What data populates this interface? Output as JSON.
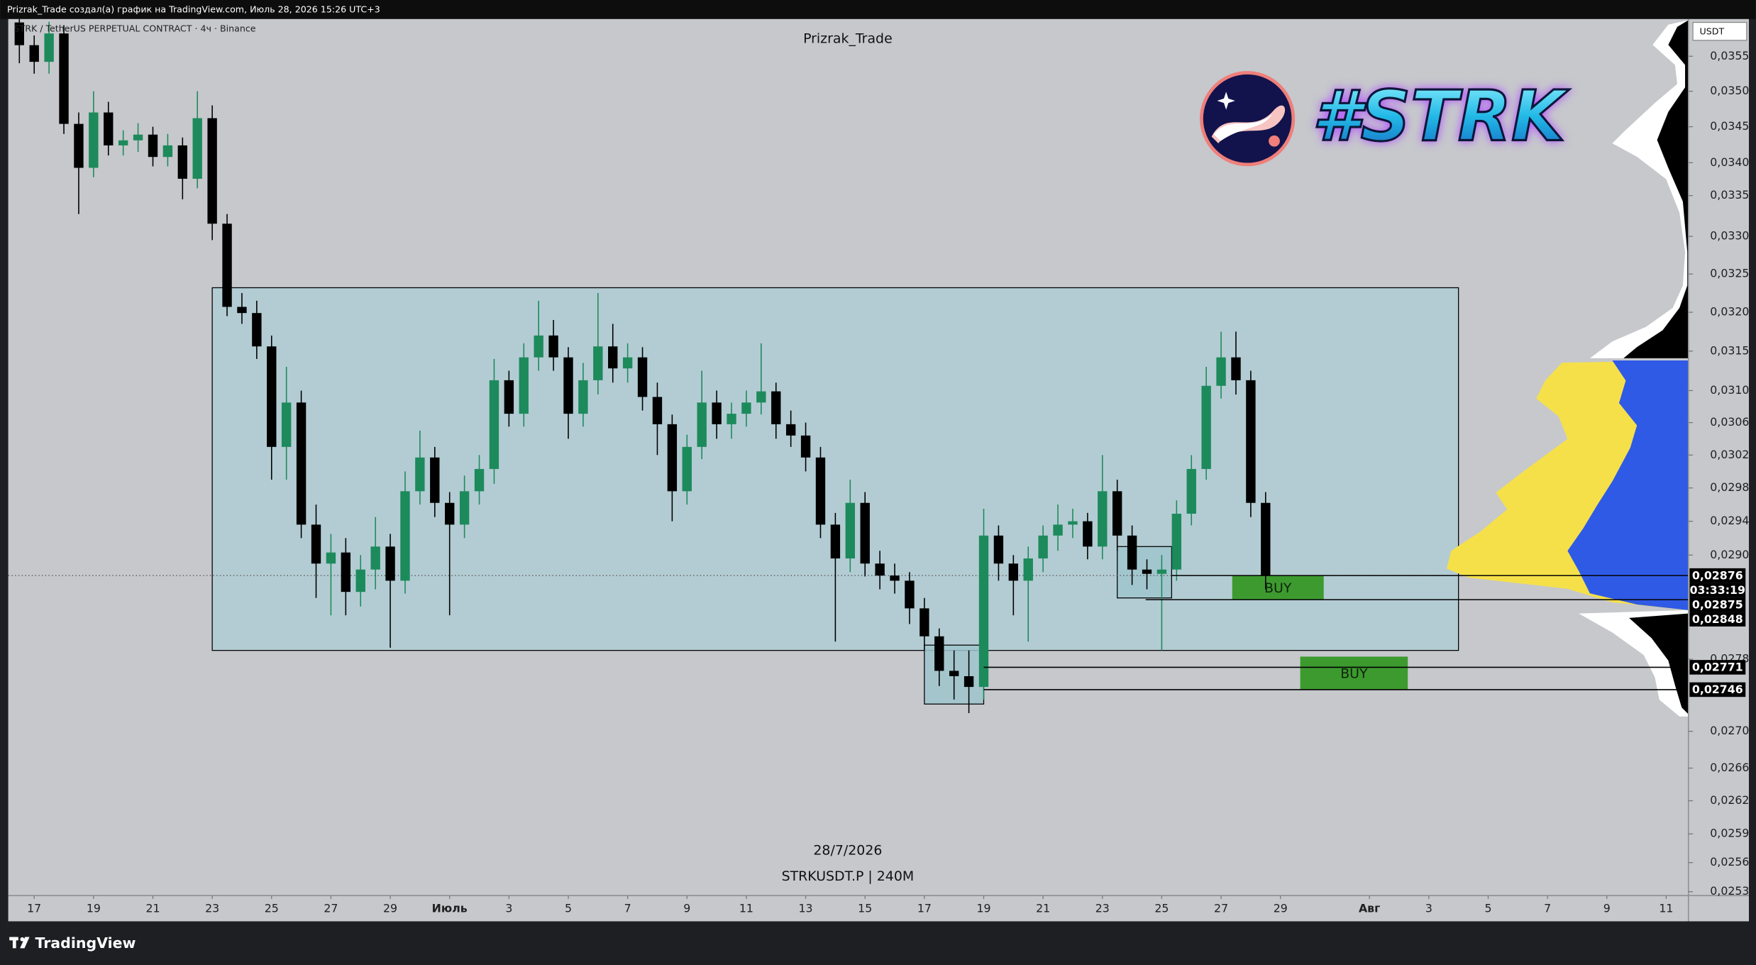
{
  "header": "Prizrak_Trade создал(а) график на TradingView.com, Июль 28, 2026 15:26 UTC+3",
  "watermark": {
    "date": "28/7/2026",
    "symbol": "STRKUSDT.P | 240M"
  },
  "logo_text": "#STRK",
  "footer_brand": "TradingView",
  "chart_data": {
    "type": "candlestick",
    "title": "Prizrak_Trade",
    "symbol": "STRK / TetherUS PERPETUAL CONTRACT · 4ч · Binance",
    "currency": "USDT",
    "log_scale": true,
    "up_color": "#1d8a5c",
    "down_color": "#000000",
    "x": [
      "2026-06-16T12:00",
      "2026-06-17T00:00",
      "2026-06-17T12:00",
      "2026-06-18T00:00",
      "2026-06-18T12:00",
      "2026-06-19T00:00",
      "2026-06-19T12:00",
      "2026-06-20T00:00",
      "2026-06-20T12:00",
      "2026-06-21T00:00",
      "2026-06-21T12:00",
      "2026-06-22T00:00",
      "2026-06-22T12:00",
      "2026-06-23T00:00",
      "2026-06-23T12:00",
      "2026-06-24T00:00",
      "2026-06-24T12:00",
      "2026-06-25T00:00",
      "2026-06-25T12:00",
      "2026-06-26T00:00",
      "2026-06-26T12:00",
      "2026-06-27T00:00",
      "2026-06-27T12:00",
      "2026-06-28T00:00",
      "2026-06-28T12:00",
      "2026-06-29T00:00",
      "2026-06-29T12:00",
      "2026-06-30T00:00",
      "2026-06-30T12:00",
      "2026-07-01T00:00",
      "2026-07-01T12:00",
      "2026-07-02T00:00",
      "2026-07-02T12:00",
      "2026-07-03T00:00",
      "2026-07-03T12:00",
      "2026-07-04T00:00",
      "2026-07-04T12:00",
      "2026-07-05T00:00",
      "2026-07-05T12:00",
      "2026-07-06T00:00",
      "2026-07-06T12:00",
      "2026-07-07T00:00",
      "2026-07-07T12:00",
      "2026-07-08T00:00",
      "2026-07-08T12:00",
      "2026-07-09T00:00",
      "2026-07-09T12:00",
      "2026-07-10T00:00",
      "2026-07-10T12:00",
      "2026-07-11T00:00",
      "2026-07-11T12:00",
      "2026-07-12T00:00",
      "2026-07-12T12:00",
      "2026-07-13T00:00",
      "2026-07-13T12:00",
      "2026-07-14T00:00",
      "2026-07-14T12:00",
      "2026-07-15T00:00",
      "2026-07-15T12:00",
      "2026-07-16T00:00",
      "2026-07-16T12:00",
      "2026-07-17T00:00",
      "2026-07-17T12:00",
      "2026-07-18T00:00",
      "2026-07-18T12:00",
      "2026-07-19T00:00",
      "2026-07-19T12:00",
      "2026-07-20T00:00",
      "2026-07-20T12:00",
      "2026-07-21T00:00",
      "2026-07-21T12:00",
      "2026-07-22T00:00",
      "2026-07-22T12:00",
      "2026-07-23T00:00",
      "2026-07-23T12:00",
      "2026-07-24T00:00",
      "2026-07-24T12:00",
      "2026-07-25T00:00",
      "2026-07-25T12:00",
      "2026-07-26T00:00",
      "2026-07-26T12:00",
      "2026-07-27T00:00",
      "2026-07-27T12:00",
      "2026-07-28T00:00",
      "2026-07-28T12:00"
    ],
    "open": [
      0.03599,
      0.03566,
      0.03542,
      0.03583,
      0.03454,
      0.03393,
      0.0347,
      0.03424,
      0.03431,
      0.03439,
      0.03408,
      0.03424,
      0.03378,
      0.03462,
      0.03317,
      0.03207,
      0.03199,
      0.03156,
      0.0303,
      0.03085,
      0.02936,
      0.0289,
      0.02903,
      0.02857,
      0.02883,
      0.0291,
      0.0287,
      0.02976,
      0.03017,
      0.02962,
      0.02936,
      0.02976,
      0.03003,
      0.03113,
      0.03071,
      0.03142,
      0.0317,
      0.03142,
      0.03071,
      0.03113,
      0.03156,
      0.03128,
      0.03142,
      0.03092,
      0.03058,
      0.02976,
      0.0303,
      0.03085,
      0.03058,
      0.03071,
      0.03085,
      0.03099,
      0.03058,
      0.03044,
      0.03017,
      0.02936,
      0.02896,
      0.02962,
      0.0289,
      0.02876,
      0.0287,
      0.02838,
      0.02806,
      0.02767,
      0.02761,
      0.02749,
      0.02923,
      0.0289,
      0.0287,
      0.02896,
      0.02923,
      0.02936,
      0.0294,
      0.0291,
      0.02976,
      0.02923,
      0.02883,
      0.02878,
      0.02883,
      0.02949,
      0.03003,
      0.03106,
      0.03142,
      0.03113,
      0.02962
    ],
    "high": [
      0.03615,
      0.0358,
      0.036,
      0.03595,
      0.0347,
      0.035,
      0.03485,
      0.03445,
      0.03455,
      0.0345,
      0.0344,
      0.03435,
      0.035,
      0.0348,
      0.0333,
      0.03225,
      0.03215,
      0.0317,
      0.0313,
      0.031,
      0.0296,
      0.02925,
      0.0292,
      0.029,
      0.02945,
      0.02925,
      0.03,
      0.0305,
      0.0303,
      0.02975,
      0.02995,
      0.0302,
      0.0314,
      0.03125,
      0.0316,
      0.03215,
      0.0319,
      0.03155,
      0.03135,
      0.03225,
      0.03185,
      0.0316,
      0.03155,
      0.0311,
      0.0307,
      0.03045,
      0.03125,
      0.031,
      0.03085,
      0.031,
      0.0316,
      0.0311,
      0.03075,
      0.0306,
      0.0303,
      0.0295,
      0.0299,
      0.02975,
      0.02905,
      0.0289,
      0.0288,
      0.0285,
      0.02815,
      0.0279,
      0.0279,
      0.02955,
      0.02935,
      0.029,
      0.0291,
      0.02935,
      0.0296,
      0.02955,
      0.0295,
      0.0302,
      0.0299,
      0.02935,
      0.02895,
      0.029,
      0.02965,
      0.0302,
      0.0313,
      0.03175,
      0.03175,
      0.03125,
      0.02975
    ],
    "low": [
      0.0354,
      0.03525,
      0.03525,
      0.0344,
      0.0333,
      0.0338,
      0.0341,
      0.0341,
      0.03415,
      0.03395,
      0.03395,
      0.0335,
      0.03365,
      0.03295,
      0.03195,
      0.03185,
      0.0314,
      0.0299,
      0.0299,
      0.0292,
      0.0285,
      0.0283,
      0.0283,
      0.0284,
      0.0286,
      0.02793,
      0.02855,
      0.0296,
      0.02945,
      0.0283,
      0.0292,
      0.0296,
      0.02985,
      0.03055,
      0.03055,
      0.03125,
      0.03125,
      0.0304,
      0.03055,
      0.03095,
      0.0311,
      0.0311,
      0.03075,
      0.0302,
      0.0294,
      0.0296,
      0.03015,
      0.0304,
      0.0304,
      0.03055,
      0.0307,
      0.0304,
      0.0303,
      0.03,
      0.0292,
      0.028,
      0.0288,
      0.02875,
      0.0286,
      0.02855,
      0.0282,
      0.0279,
      0.0275,
      0.02735,
      0.0272,
      0.02735,
      0.0287,
      0.0283,
      0.028,
      0.0288,
      0.02905,
      0.0292,
      0.02895,
      0.02895,
      0.02905,
      0.02865,
      0.0286,
      0.0279,
      0.0287,
      0.02935,
      0.0299,
      0.0309,
      0.03095,
      0.02945,
      0.0286
    ],
    "close": [
      0.03566,
      0.03542,
      0.03583,
      0.03454,
      0.03393,
      0.0347,
      0.03424,
      0.03431,
      0.03439,
      0.03408,
      0.03424,
      0.03378,
      0.03462,
      0.03317,
      0.03207,
      0.03199,
      0.03156,
      0.0303,
      0.03085,
      0.02936,
      0.0289,
      0.02903,
      0.02857,
      0.02883,
      0.0291,
      0.0287,
      0.02976,
      0.03017,
      0.02962,
      0.02936,
      0.02976,
      0.03003,
      0.03113,
      0.03071,
      0.03142,
      0.0317,
      0.03142,
      0.03071,
      0.03113,
      0.03156,
      0.03128,
      0.03142,
      0.03092,
      0.03058,
      0.02976,
      0.0303,
      0.03085,
      0.03058,
      0.03071,
      0.03085,
      0.03099,
      0.03058,
      0.03044,
      0.03017,
      0.02936,
      0.02896,
      0.02962,
      0.0289,
      0.02876,
      0.0287,
      0.02838,
      0.02806,
      0.02767,
      0.02761,
      0.02749,
      0.02923,
      0.0289,
      0.0287,
      0.02896,
      0.02923,
      0.02936,
      0.0294,
      0.0291,
      0.02976,
      0.02923,
      0.02883,
      0.02878,
      0.02883,
      0.02949,
      0.03003,
      0.03106,
      0.03142,
      0.03113,
      0.02962,
      0.02876
    ],
    "xlim": [
      "2026-06-16T03:00",
      "2026-08-11T18:00"
    ],
    "xticks": [
      {
        "value": "2026-06-17T00:00",
        "label": "17"
      },
      {
        "value": "2026-06-19T00:00",
        "label": "19"
      },
      {
        "value": "2026-06-21T00:00",
        "label": "21"
      },
      {
        "value": "2026-06-23T00:00",
        "label": "23"
      },
      {
        "value": "2026-06-25T00:00",
        "label": "25"
      },
      {
        "value": "2026-06-27T00:00",
        "label": "27"
      },
      {
        "value": "2026-06-29T00:00",
        "label": "29"
      },
      {
        "value": "2026-07-01T00:00",
        "label": "Июль"
      },
      {
        "value": "2026-07-03T00:00",
        "label": "3"
      },
      {
        "value": "2026-07-05T00:00",
        "label": "5"
      },
      {
        "value": "2026-07-07T00:00",
        "label": "7"
      },
      {
        "value": "2026-07-09T00:00",
        "label": "9"
      },
      {
        "value": "2026-07-11T00:00",
        "label": "11"
      },
      {
        "value": "2026-07-13T00:00",
        "label": "13"
      },
      {
        "value": "2026-07-15T00:00",
        "label": "15"
      },
      {
        "value": "2026-07-17T00:00",
        "label": "17"
      },
      {
        "value": "2026-07-19T00:00",
        "label": "19"
      },
      {
        "value": "2026-07-21T00:00",
        "label": "21"
      },
      {
        "value": "2026-07-23T00:00",
        "label": "23"
      },
      {
        "value": "2026-07-25T00:00",
        "label": "25"
      },
      {
        "value": "2026-07-27T00:00",
        "label": "27"
      },
      {
        "value": "2026-07-29T00:00",
        "label": "29"
      },
      {
        "value": "2026-08-01T00:00",
        "label": "Авг"
      },
      {
        "value": "2026-08-03T00:00",
        "label": "3"
      },
      {
        "value": "2026-08-05T00:00",
        "label": "5"
      },
      {
        "value": "2026-08-07T00:00",
        "label": "7"
      },
      {
        "value": "2026-08-09T00:00",
        "label": "9"
      },
      {
        "value": "2026-08-11T00:00",
        "label": "11"
      }
    ],
    "ylim": [
      0.02526,
      0.03604
    ],
    "yticks": [
      {
        "value": 0.0355,
        "label": "0,03550"
      },
      {
        "value": 0.035,
        "label": "0,03500"
      },
      {
        "value": 0.0345,
        "label": "0,03450"
      },
      {
        "value": 0.034,
        "label": "0,03400"
      },
      {
        "value": 0.03355,
        "label": "0,03355"
      },
      {
        "value": 0.033,
        "label": "0,03300"
      },
      {
        "value": 0.0325,
        "label": "0,03250"
      },
      {
        "value": 0.032,
        "label": "0,03200"
      },
      {
        "value": 0.0315,
        "label": "0,03150"
      },
      {
        "value": 0.031,
        "label": "0,03100"
      },
      {
        "value": 0.0306,
        "label": "0,03060"
      },
      {
        "value": 0.0302,
        "label": "0,03020"
      },
      {
        "value": 0.0298,
        "label": "0,02980"
      },
      {
        "value": 0.0294,
        "label": "0,02940"
      },
      {
        "value": 0.029,
        "label": "0,02900"
      },
      {
        "value": 0.0278,
        "label": "0,02780"
      },
      {
        "value": 0.027,
        "label": "0,02700"
      },
      {
        "value": 0.0266,
        "label": "0,02660"
      },
      {
        "value": 0.02625,
        "label": "0,02625"
      },
      {
        "value": 0.0259,
        "label": "0,02590"
      },
      {
        "value": 0.0256,
        "label": "0,02560"
      },
      {
        "value": 0.0253,
        "label": "0,02530"
      }
    ],
    "price_labels": [
      {
        "value": 0.02876,
        "label": "0,02876"
      },
      {
        "value": 0.02875,
        "label": "0,02875"
      },
      {
        "value": 0.02848,
        "label": "0,02848"
      },
      {
        "value": 0.02771,
        "label": "0,02771"
      },
      {
        "value": 0.02746,
        "label": "0,02746"
      }
    ],
    "countdown": "03:33:19",
    "zones": [
      {
        "x0": "2026-06-23T00:00",
        "x1": "2026-08-04T00:00",
        "y0": 0.0279,
        "y1": 0.03232,
        "color": "#afcdd4"
      },
      {
        "x0": "2026-07-17T00:00",
        "x1": "2026-07-19T00:00",
        "y0": 0.0273,
        "y1": 0.02796,
        "color": "#9fc4cd"
      },
      {
        "x0": "2026-07-23T12:00",
        "x1": "2026-07-25T08:00",
        "y0": 0.0285,
        "y1": 0.0291,
        "color": "#9fc4cd"
      },
      {
        "x0": "2026-07-27T09:00",
        "x1": "2026-07-30T11:00",
        "y0": 0.02848,
        "y1": 0.02876,
        "color": "#3d9a2f",
        "label": "BUY"
      },
      {
        "x0": "2026-07-29T16:00",
        "x1": "2026-08-02T07:00",
        "y0": 0.02746,
        "y1": 0.02783,
        "color": "#3d9a2f",
        "label": "BUY"
      }
    ],
    "lines": [
      {
        "from": "2026-07-25T08:00",
        "price": 0.02876
      },
      {
        "from": "2026-07-24T11:00",
        "price": 0.02848
      },
      {
        "from": "2026-07-19T00:00",
        "price": 0.02771
      },
      {
        "from": "2026-07-19T00:00",
        "price": 0.02746
      }
    ]
  }
}
